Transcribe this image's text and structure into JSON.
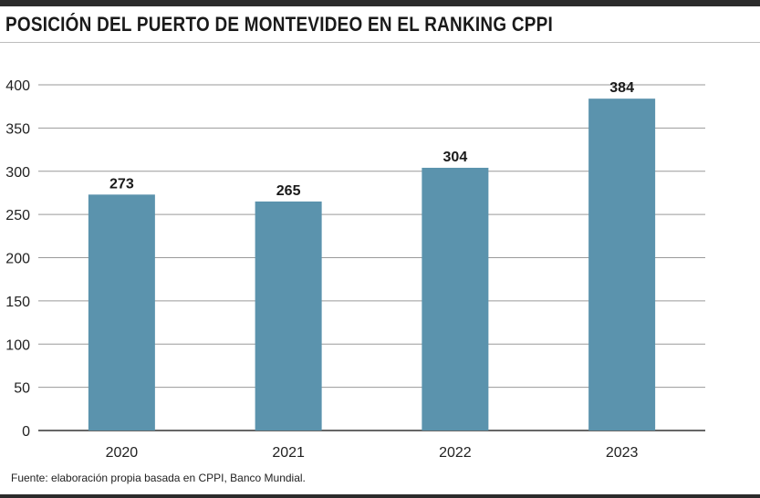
{
  "header": {
    "title": "POSICIÓN DEL PUERTO DE MONTEVIDEO EN EL RANKING CPPI"
  },
  "footer": {
    "source": "Fuente: elaboración propia basada en CPPI, Banco Mundial."
  },
  "colors": {
    "bar": "#5b93ad",
    "grid": "#9a9a9a",
    "axis": "#333333"
  },
  "chart_data": {
    "type": "bar",
    "categories": [
      "2020",
      "2021",
      "2022",
      "2023"
    ],
    "values": [
      273,
      265,
      304,
      384
    ],
    "value_labels": [
      "273",
      "265",
      "304",
      "384"
    ],
    "yticks": [
      0,
      50,
      100,
      150,
      200,
      250,
      300,
      350,
      400
    ],
    "ylim": [
      0,
      400
    ],
    "xlabel": "",
    "ylabel": "",
    "grid": true,
    "legend": "none"
  }
}
